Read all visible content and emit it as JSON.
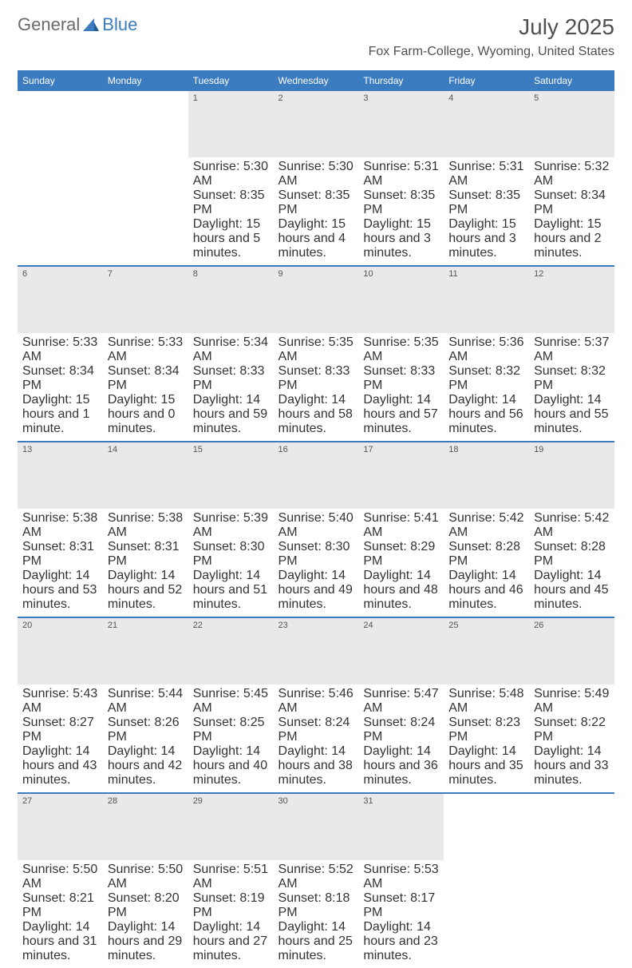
{
  "logo": {
    "prefix": "General",
    "suffix": "Blue"
  },
  "title": "July 2025",
  "location": "Fox Farm-College, Wyoming, United States",
  "colors": {
    "header_bg": "#3b7bbf",
    "header_text": "#ffffff",
    "daynum_bg": "#e9e9e9",
    "text": "#333333",
    "rule": "#3b7bbf"
  },
  "day_labels": [
    "Sunday",
    "Monday",
    "Tuesday",
    "Wednesday",
    "Thursday",
    "Friday",
    "Saturday"
  ],
  "weeks": [
    [
      null,
      null,
      {
        "n": "1",
        "sunrise": "5:30 AM",
        "sunset": "8:35 PM",
        "daylight": "15 hours and 5 minutes."
      },
      {
        "n": "2",
        "sunrise": "5:30 AM",
        "sunset": "8:35 PM",
        "daylight": "15 hours and 4 minutes."
      },
      {
        "n": "3",
        "sunrise": "5:31 AM",
        "sunset": "8:35 PM",
        "daylight": "15 hours and 3 minutes."
      },
      {
        "n": "4",
        "sunrise": "5:31 AM",
        "sunset": "8:35 PM",
        "daylight": "15 hours and 3 minutes."
      },
      {
        "n": "5",
        "sunrise": "5:32 AM",
        "sunset": "8:34 PM",
        "daylight": "15 hours and 2 minutes."
      }
    ],
    [
      {
        "n": "6",
        "sunrise": "5:33 AM",
        "sunset": "8:34 PM",
        "daylight": "15 hours and 1 minute."
      },
      {
        "n": "7",
        "sunrise": "5:33 AM",
        "sunset": "8:34 PM",
        "daylight": "15 hours and 0 minutes."
      },
      {
        "n": "8",
        "sunrise": "5:34 AM",
        "sunset": "8:33 PM",
        "daylight": "14 hours and 59 minutes."
      },
      {
        "n": "9",
        "sunrise": "5:35 AM",
        "sunset": "8:33 PM",
        "daylight": "14 hours and 58 minutes."
      },
      {
        "n": "10",
        "sunrise": "5:35 AM",
        "sunset": "8:33 PM",
        "daylight": "14 hours and 57 minutes."
      },
      {
        "n": "11",
        "sunrise": "5:36 AM",
        "sunset": "8:32 PM",
        "daylight": "14 hours and 56 minutes."
      },
      {
        "n": "12",
        "sunrise": "5:37 AM",
        "sunset": "8:32 PM",
        "daylight": "14 hours and 55 minutes."
      }
    ],
    [
      {
        "n": "13",
        "sunrise": "5:38 AM",
        "sunset": "8:31 PM",
        "daylight": "14 hours and 53 minutes."
      },
      {
        "n": "14",
        "sunrise": "5:38 AM",
        "sunset": "8:31 PM",
        "daylight": "14 hours and 52 minutes."
      },
      {
        "n": "15",
        "sunrise": "5:39 AM",
        "sunset": "8:30 PM",
        "daylight": "14 hours and 51 minutes."
      },
      {
        "n": "16",
        "sunrise": "5:40 AM",
        "sunset": "8:30 PM",
        "daylight": "14 hours and 49 minutes."
      },
      {
        "n": "17",
        "sunrise": "5:41 AM",
        "sunset": "8:29 PM",
        "daylight": "14 hours and 48 minutes."
      },
      {
        "n": "18",
        "sunrise": "5:42 AM",
        "sunset": "8:28 PM",
        "daylight": "14 hours and 46 minutes."
      },
      {
        "n": "19",
        "sunrise": "5:42 AM",
        "sunset": "8:28 PM",
        "daylight": "14 hours and 45 minutes."
      }
    ],
    [
      {
        "n": "20",
        "sunrise": "5:43 AM",
        "sunset": "8:27 PM",
        "daylight": "14 hours and 43 minutes."
      },
      {
        "n": "21",
        "sunrise": "5:44 AM",
        "sunset": "8:26 PM",
        "daylight": "14 hours and 42 minutes."
      },
      {
        "n": "22",
        "sunrise": "5:45 AM",
        "sunset": "8:25 PM",
        "daylight": "14 hours and 40 minutes."
      },
      {
        "n": "23",
        "sunrise": "5:46 AM",
        "sunset": "8:24 PM",
        "daylight": "14 hours and 38 minutes."
      },
      {
        "n": "24",
        "sunrise": "5:47 AM",
        "sunset": "8:24 PM",
        "daylight": "14 hours and 36 minutes."
      },
      {
        "n": "25",
        "sunrise": "5:48 AM",
        "sunset": "8:23 PM",
        "daylight": "14 hours and 35 minutes."
      },
      {
        "n": "26",
        "sunrise": "5:49 AM",
        "sunset": "8:22 PM",
        "daylight": "14 hours and 33 minutes."
      }
    ],
    [
      {
        "n": "27",
        "sunrise": "5:50 AM",
        "sunset": "8:21 PM",
        "daylight": "14 hours and 31 minutes."
      },
      {
        "n": "28",
        "sunrise": "5:50 AM",
        "sunset": "8:20 PM",
        "daylight": "14 hours and 29 minutes."
      },
      {
        "n": "29",
        "sunrise": "5:51 AM",
        "sunset": "8:19 PM",
        "daylight": "14 hours and 27 minutes."
      },
      {
        "n": "30",
        "sunrise": "5:52 AM",
        "sunset": "8:18 PM",
        "daylight": "14 hours and 25 minutes."
      },
      {
        "n": "31",
        "sunrise": "5:53 AM",
        "sunset": "8:17 PM",
        "daylight": "14 hours and 23 minutes."
      },
      null,
      null
    ]
  ]
}
